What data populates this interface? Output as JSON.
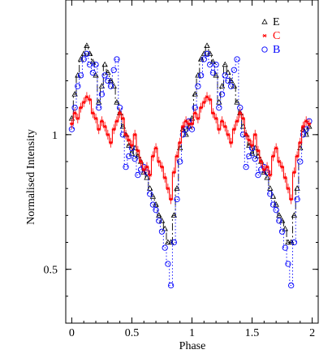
{
  "chart_data": {
    "type": "line",
    "title": "",
    "xlabel": "Phase",
    "ylabel": "Normalised Intensity",
    "xlim": [
      -0.05,
      2.05
    ],
    "ylim": [
      0.3,
      1.5
    ],
    "xticks": [
      0,
      0.5,
      1,
      1.5,
      2
    ],
    "xtick_labels": [
      "0",
      "0.5",
      "1",
      "1.5",
      "2"
    ],
    "yticks": [
      0.5,
      1
    ],
    "ytick_labels": [
      "0.5",
      "1"
    ],
    "legend": {
      "placement": "top-right"
    },
    "grid": false,
    "series": [
      {
        "name": "E",
        "color": "#000000",
        "marker": "triangle",
        "linestyle": "dash-dot",
        "x": [
          0.0,
          0.025,
          0.05,
          0.075,
          0.1,
          0.125,
          0.15,
          0.175,
          0.2,
          0.225,
          0.25,
          0.275,
          0.3,
          0.325,
          0.35,
          0.375,
          0.4,
          0.425,
          0.45,
          0.475,
          0.5,
          0.525,
          0.55,
          0.575,
          0.6,
          0.625,
          0.65,
          0.675,
          0.7,
          0.725,
          0.75,
          0.775,
          0.8,
          0.825,
          0.85,
          0.875,
          0.9,
          0.925,
          0.95,
          0.975,
          1.0,
          1.025,
          1.05,
          1.075,
          1.1,
          1.125,
          1.15,
          1.175,
          1.2,
          1.225,
          1.25,
          1.275,
          1.3,
          1.325,
          1.35,
          1.375,
          1.4,
          1.425,
          1.45,
          1.475,
          1.5,
          1.525,
          1.55,
          1.575,
          1.6,
          1.625,
          1.65,
          1.675,
          1.7,
          1.725,
          1.75,
          1.775,
          1.8,
          1.825,
          1.85,
          1.875,
          1.9,
          1.925,
          1.95,
          1.975
        ],
        "y": [
          1.06,
          1.15,
          1.22,
          1.28,
          1.3,
          1.33,
          1.3,
          1.27,
          1.22,
          1.12,
          1.18,
          1.26,
          1.23,
          1.2,
          1.18,
          1.12,
          1.08,
          1.03,
          1.0,
          0.96,
          0.93,
          0.95,
          0.92,
          0.9,
          0.86,
          0.84,
          0.8,
          0.77,
          0.74,
          0.7,
          0.68,
          0.65,
          0.6,
          0.6,
          0.7,
          0.8,
          0.95,
          1.02,
          1.0,
          1.03,
          1.06,
          1.15,
          1.22,
          1.28,
          1.3,
          1.33,
          1.3,
          1.27,
          1.22,
          1.12,
          1.18,
          1.26,
          1.23,
          1.2,
          1.18,
          1.12,
          1.08,
          1.03,
          1.0,
          0.96,
          0.93,
          0.95,
          0.92,
          0.9,
          0.86,
          0.84,
          0.8,
          0.77,
          0.74,
          0.7,
          0.68,
          0.65,
          0.6,
          0.6,
          0.7,
          0.8,
          0.95,
          1.02,
          1.0,
          1.03
        ]
      },
      {
        "name": "C",
        "color": "#ff0000",
        "marker": "star",
        "linestyle": "solid",
        "x": [
          0.0,
          0.025,
          0.05,
          0.075,
          0.1,
          0.125,
          0.15,
          0.175,
          0.2,
          0.225,
          0.25,
          0.275,
          0.3,
          0.325,
          0.35,
          0.375,
          0.4,
          0.425,
          0.45,
          0.475,
          0.5,
          0.525,
          0.55,
          0.575,
          0.6,
          0.625,
          0.65,
          0.675,
          0.7,
          0.725,
          0.75,
          0.775,
          0.8,
          0.825,
          0.85,
          0.875,
          0.9,
          0.925,
          0.95,
          0.975,
          1.0,
          1.025,
          1.05,
          1.075,
          1.1,
          1.125,
          1.15,
          1.175,
          1.2,
          1.225,
          1.25,
          1.275,
          1.3,
          1.325,
          1.35,
          1.375,
          1.4,
          1.425,
          1.45,
          1.475,
          1.5,
          1.525,
          1.55,
          1.575,
          1.6,
          1.625,
          1.65,
          1.675,
          1.7,
          1.725,
          1.75,
          1.775,
          1.8,
          1.825,
          1.85,
          1.875,
          1.9,
          1.925,
          1.95,
          1.975
        ],
        "y": [
          1.04,
          1.08,
          1.06,
          1.1,
          1.12,
          1.14,
          1.13,
          1.08,
          1.06,
          1.02,
          1.05,
          1.03,
          1.0,
          0.97,
          1.02,
          1.05,
          1.08,
          1.06,
          1.0,
          0.98,
          0.96,
          1.0,
          0.94,
          0.9,
          0.87,
          0.88,
          0.85,
          0.92,
          0.95,
          0.9,
          0.88,
          0.84,
          0.8,
          0.76,
          0.86,
          0.92,
          0.97,
          1.03,
          1.05,
          1.04,
          1.04,
          1.08,
          1.06,
          1.1,
          1.12,
          1.14,
          1.13,
          1.08,
          1.06,
          1.02,
          1.05,
          1.03,
          1.0,
          0.97,
          1.02,
          1.05,
          1.08,
          1.06,
          1.0,
          0.98,
          0.96,
          1.0,
          0.94,
          0.9,
          0.87,
          0.88,
          0.85,
          0.92,
          0.95,
          0.9,
          0.88,
          0.84,
          0.8,
          0.76,
          0.86,
          0.92,
          0.97,
          1.03,
          1.05,
          1.04
        ]
      },
      {
        "name": "B",
        "color": "#0000ff",
        "marker": "circle",
        "linestyle": "dotted",
        "x": [
          0.0,
          0.025,
          0.05,
          0.075,
          0.1,
          0.125,
          0.15,
          0.175,
          0.2,
          0.225,
          0.25,
          0.275,
          0.3,
          0.325,
          0.35,
          0.375,
          0.4,
          0.425,
          0.45,
          0.475,
          0.5,
          0.525,
          0.55,
          0.575,
          0.6,
          0.625,
          0.65,
          0.675,
          0.7,
          0.725,
          0.75,
          0.775,
          0.8,
          0.825,
          0.85,
          0.875,
          0.9,
          0.925,
          0.95,
          0.975,
          1.0,
          1.025,
          1.05,
          1.075,
          1.1,
          1.125,
          1.15,
          1.175,
          1.2,
          1.225,
          1.25,
          1.275,
          1.3,
          1.325,
          1.35,
          1.375,
          1.4,
          1.425,
          1.45,
          1.475,
          1.5,
          1.525,
          1.55,
          1.575,
          1.6,
          1.625,
          1.65,
          1.675,
          1.7,
          1.725,
          1.75,
          1.775,
          1.8,
          1.825,
          1.85,
          1.875,
          1.9,
          1.925,
          1.95,
          1.975
        ],
        "y": [
          1.02,
          1.1,
          1.18,
          1.22,
          1.28,
          1.3,
          1.26,
          1.23,
          1.26,
          1.1,
          1.15,
          1.22,
          1.2,
          1.18,
          1.24,
          1.28,
          1.1,
          1.0,
          0.88,
          0.92,
          0.95,
          0.91,
          0.85,
          0.87,
          0.88,
          0.86,
          0.78,
          0.74,
          0.72,
          0.68,
          0.64,
          0.58,
          0.52,
          0.44,
          0.6,
          0.76,
          0.9,
          1.0,
          1.02,
          1.05,
          1.02,
          1.1,
          1.18,
          1.22,
          1.28,
          1.3,
          1.26,
          1.23,
          1.26,
          1.1,
          1.15,
          1.22,
          1.2,
          1.18,
          1.24,
          1.28,
          1.1,
          1.0,
          0.88,
          0.92,
          0.95,
          0.91,
          0.85,
          0.87,
          0.88,
          0.86,
          0.78,
          0.74,
          0.72,
          0.68,
          0.64,
          0.58,
          0.52,
          0.44,
          0.6,
          0.76,
          0.9,
          1.0,
          1.02,
          1.05
        ]
      }
    ]
  }
}
